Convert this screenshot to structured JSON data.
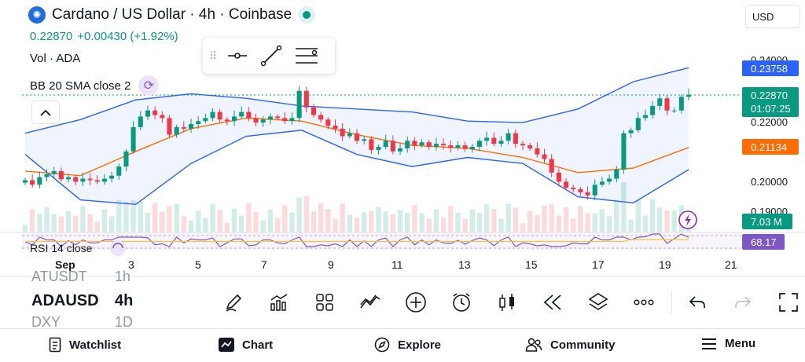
{
  "header": {
    "title": "Cardano / US Dollar · 4h · Coinbase",
    "price": "0.22870",
    "change": "+0.00430 (+1.92%)",
    "vol_label": "Vol · ADA",
    "bb_label": "BB 20 SMA close 2",
    "currency": "USD"
  },
  "rsi_label": "RSI 14 close",
  "axis_labels": {
    "price_ticks": [
      "0.24000",
      "0.22000",
      "0.20000",
      "0.19000"
    ],
    "date_ticks": [
      "Sep",
      "3",
      "5",
      "7",
      "9",
      "11",
      "13",
      "15",
      "17",
      "19",
      "21"
    ]
  },
  "price_badges": {
    "bb_upper": "0.23758",
    "last_price": "0.22870",
    "countdown": "01:07:25",
    "bb_basis": "0.21134",
    "volume": "7.03 M",
    "rsi": "68.17"
  },
  "symbol_wheel": {
    "prev_symbol": "ATUSDT",
    "prev_interval": "1h",
    "current_symbol": "ADAUSD",
    "current_interval": "4h",
    "next_symbol": "DXY",
    "next_interval": "1D"
  },
  "nav": {
    "watchlist": "Watchlist",
    "chart": "Chart",
    "explore": "Explore",
    "community": "Community",
    "menu": "Menu"
  },
  "colors": {
    "up": "#089981",
    "down": "#f23645",
    "bb_band": "#2962ff",
    "bb_basis": "#ff6d00",
    "rsi": "#7e57c2",
    "badge_blue": "#2962ff",
    "badge_green": "#089981",
    "badge_orange": "#ff6d00",
    "badge_purple": "#7e57c2"
  },
  "chart_data": {
    "type": "candlestick",
    "title": "Cardano / US Dollar · 4h · Coinbase",
    "x": [
      "Sep",
      "3",
      "5",
      "7",
      "9",
      "11",
      "13",
      "15",
      "17",
      "19",
      "21"
    ],
    "ylim": [
      0.19,
      0.24
    ],
    "y_ticks": [
      0.19,
      0.2,
      0.22,
      0.24
    ],
    "close_series": [
      0.2005,
      0.199,
      0.2015,
      0.2025,
      0.2035,
      0.2008,
      0.2015,
      0.2,
      0.201,
      0.2005,
      0.2,
      0.201,
      0.202,
      0.205,
      0.21,
      0.218,
      0.2215,
      0.2235,
      0.222,
      0.221,
      0.2155,
      0.218,
      0.2175,
      0.219,
      0.22,
      0.221,
      0.223,
      0.2205,
      0.22,
      0.2215,
      0.223,
      0.221,
      0.2195,
      0.2205,
      0.2215,
      0.221,
      0.22,
      0.221,
      0.23,
      0.2245,
      0.222,
      0.2205,
      0.2185,
      0.2175,
      0.215,
      0.216,
      0.2135,
      0.214,
      0.2105,
      0.2115,
      0.2135,
      0.21,
      0.211,
      0.2135,
      0.212,
      0.213,
      0.2115,
      0.2125,
      0.212,
      0.2112,
      0.212,
      0.2108,
      0.2115,
      0.2135,
      0.2145,
      0.2125,
      0.2135,
      0.216,
      0.2125,
      0.212,
      0.211,
      0.209,
      0.2075,
      0.203,
      0.2,
      0.198,
      0.1975,
      0.1965,
      0.1955,
      0.199,
      0.2,
      0.201,
      0.204,
      0.216,
      0.217,
      0.221,
      0.222,
      0.225,
      0.2275,
      0.2235,
      0.2235,
      0.228,
      0.2287
    ],
    "bb_upper": [
      0.216,
      0.2205,
      0.227,
      0.229,
      0.2275,
      0.225,
      0.224,
      0.223,
      0.22,
      0.2195,
      0.224,
      0.233,
      0.2376
    ],
    "bb_lower": [
      0.209,
      0.194,
      0.1925,
      0.206,
      0.215,
      0.217,
      0.209,
      0.205,
      0.208,
      0.206,
      0.195,
      0.193,
      0.204
    ],
    "bb_basis": [
      0.2035,
      0.202,
      0.21,
      0.2175,
      0.221,
      0.22,
      0.2155,
      0.212,
      0.211,
      0.208,
      0.203,
      0.2045,
      0.2113
    ],
    "volume_last": "7.03 M",
    "rsi_last": 68.17,
    "grid": false,
    "legend": "top-left"
  }
}
